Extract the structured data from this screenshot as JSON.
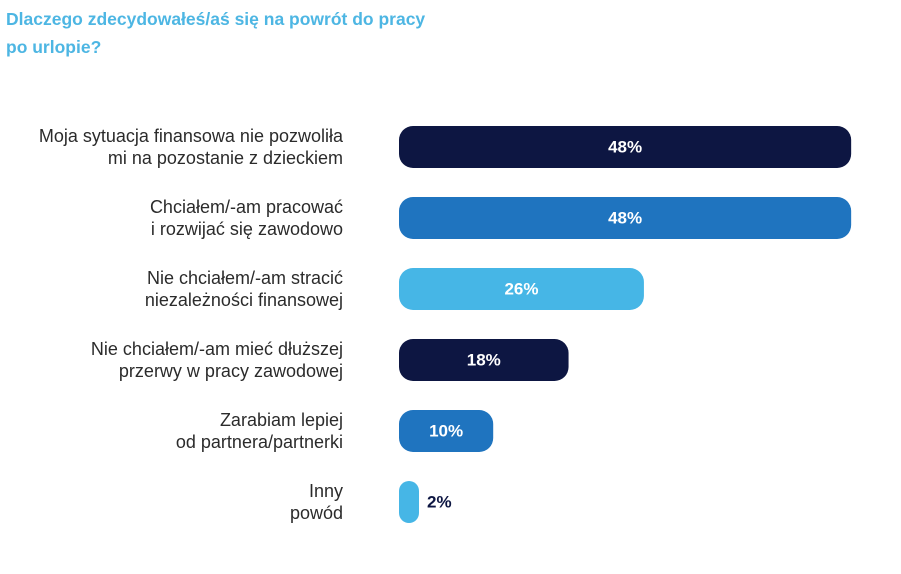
{
  "chart_data": {
    "type": "bar",
    "orientation": "horizontal",
    "title": "Dlaczego zdecydowałeś/aś się na powrót do pracy po urlopie?",
    "categories": [
      [
        "Moja sytuacja finansowa nie pozwoliła",
        "mi na pozostanie z dzieckiem"
      ],
      [
        "Chciałem/-am pracować",
        "i rozwijać się zawodowo"
      ],
      [
        "Nie chciałem/-am stracić",
        "niezależności finansowej"
      ],
      [
        "Nie chciałem/-am mieć dłuższej",
        "przerwy w pracy zawodowej"
      ],
      [
        "Zarabiam lepiej",
        "od partnera/partnerki"
      ],
      [
        "Inny",
        "powód"
      ]
    ],
    "values": [
      48,
      48,
      26,
      18,
      10,
      2
    ],
    "value_labels": [
      "48%",
      "48%",
      "26%",
      "18%",
      "10%",
      "2%"
    ],
    "unit": "%",
    "bar_colors": [
      "#0d1642",
      "#1f74bf",
      "#46b6e6",
      "#0d1642",
      "#1f74bf",
      "#46b6e6"
    ],
    "value_label_colors": [
      "#ffffff",
      "#ffffff",
      "#ffffff",
      "#ffffff",
      "#ffffff",
      "#0d1642"
    ],
    "title_color": "#4db6e3",
    "grid": false,
    "legend": "none"
  }
}
